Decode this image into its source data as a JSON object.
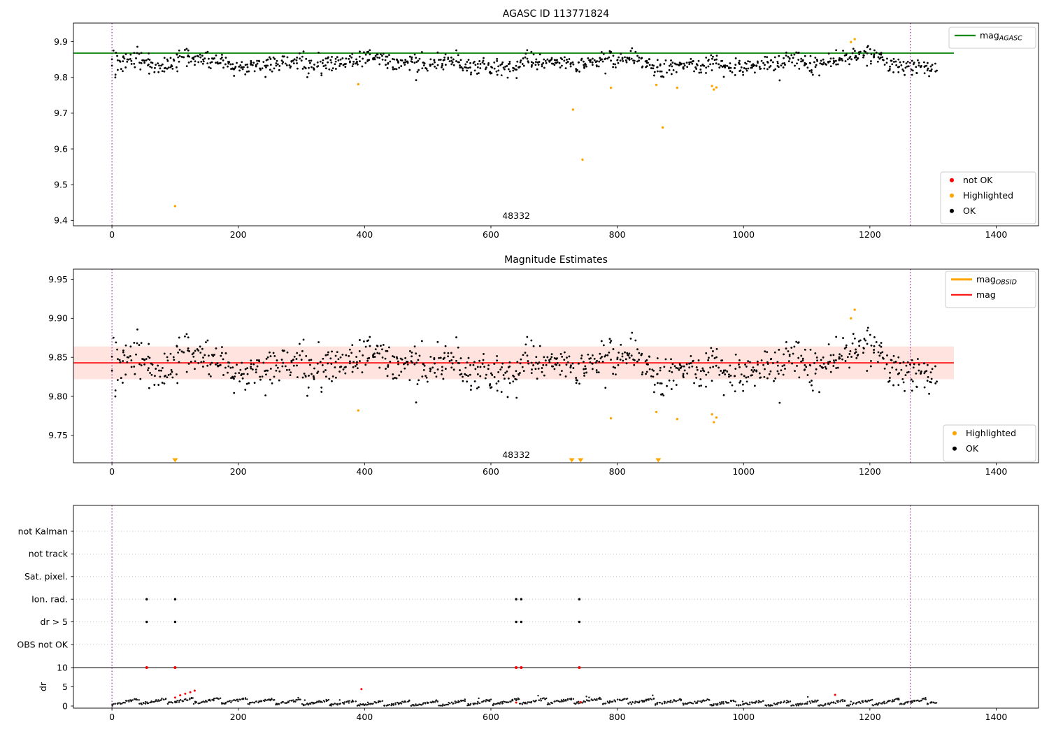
{
  "figure": {
    "bg_color": "#ffffff",
    "x_ticks": [
      0,
      200,
      400,
      600,
      800,
      1000,
      1200,
      1400
    ],
    "xlim": [
      -61,
      1467
    ],
    "vlines": {
      "x": [
        0,
        1264
      ],
      "color": "#800080",
      "style": "dotted"
    }
  },
  "chart_data": [
    {
      "type": "scatter",
      "title": "AGASC ID 113771824",
      "ylim": [
        9.385,
        9.952
      ],
      "y_ticks": [
        9.4,
        9.5,
        9.6,
        9.7,
        9.8,
        9.9
      ],
      "y_tick_decimals": 1,
      "annotation": {
        "text": "48332",
        "x": 640
      },
      "ref_line": {
        "value": 9.868,
        "color": "#008000",
        "label_main": "mag",
        "label_sub": "AGASC",
        "x_end": 1333
      },
      "legend_lines": [
        {
          "label_main": "mag",
          "label_sub": "AGASC",
          "color": "#008000"
        }
      ],
      "legend_markers": [
        {
          "label": "not OK",
          "color": "#ff0000"
        },
        {
          "label": "Highlighted",
          "color": "#ffa500"
        },
        {
          "label": "OK",
          "color": "#000000"
        }
      ],
      "ok_scatter": {
        "n": 1000,
        "x_min": 0,
        "x_max": 1305,
        "y_mean": 9.841,
        "y_spread": 0.012,
        "y_min": 9.778,
        "y_max": 9.903,
        "seed": 20240101,
        "color": "#000000"
      },
      "highlighted_color": "#ffa500",
      "highlighted_points": [
        [
          100,
          9.44
        ],
        [
          390,
          9.781
        ],
        [
          730,
          9.71
        ],
        [
          745,
          9.57
        ],
        [
          790,
          9.771
        ],
        [
          862,
          9.779
        ],
        [
          872,
          9.66
        ],
        [
          895,
          9.771
        ],
        [
          950,
          9.776
        ],
        [
          953,
          9.766
        ],
        [
          957,
          9.772
        ],
        [
          1170,
          9.899
        ],
        [
          1176,
          9.907
        ]
      ],
      "not_ok_points": []
    },
    {
      "type": "scatter",
      "title": "Magnitude Estimates",
      "ylim": [
        9.715,
        9.963
      ],
      "y_ticks": [
        9.75,
        9.8,
        9.85,
        9.9,
        9.95
      ],
      "y_tick_decimals": 2,
      "annotation": {
        "text": "48332",
        "x": 640
      },
      "ref_line": {
        "value": 9.843,
        "color": "#ff0000",
        "label_main": "mag",
        "label_sub": "",
        "x_end": 1333
      },
      "band": {
        "low": 9.822,
        "high": 9.864,
        "color": "#ff6347",
        "opacity": 0.18,
        "x_end": 1333
      },
      "legend_lines": [
        {
          "label_main": "mag",
          "label_sub": "OBSID",
          "color": "#ffa500"
        },
        {
          "label_main": "mag",
          "label_sub": "",
          "color": "#ff0000"
        }
      ],
      "legend_markers": [
        {
          "label": "Highlighted",
          "color": "#ffa500"
        },
        {
          "label": "OK",
          "color": "#000000"
        }
      ],
      "ok_scatter": {
        "n": 1000,
        "x_min": 0,
        "x_max": 1305,
        "y_mean": 9.841,
        "y_spread": 0.012,
        "y_min": 9.788,
        "y_max": 9.908,
        "seed": 20240101,
        "color": "#000000"
      },
      "highlighted_color": "#ffa500",
      "highlighted_points": [
        [
          390,
          9.782
        ],
        [
          790,
          9.772
        ],
        [
          862,
          9.78
        ],
        [
          895,
          9.771
        ],
        [
          950,
          9.777
        ],
        [
          953,
          9.767
        ],
        [
          957,
          9.773
        ],
        [
          1170,
          9.9
        ],
        [
          1176,
          9.911
        ]
      ],
      "clipped_markers": {
        "x": [
          100,
          728,
          742,
          865
        ],
        "color": "#ffa500"
      }
    },
    {
      "type": "flags",
      "title": "",
      "flag_rows": [
        "not Kalman",
        "not track",
        "Sat. pixel.",
        "Ion. rad.",
        "dr > 5",
        "OBS not OK"
      ],
      "flag_points": [
        {
          "row": "Ion. rad.",
          "x": [
            55,
            100,
            640,
            648,
            740
          ],
          "color": "#000000"
        },
        {
          "row": "dr > 5",
          "x": [
            55,
            100,
            640,
            648,
            740
          ],
          "color": "#000000"
        }
      ],
      "dr_axis": {
        "label": "dr",
        "ticks": [
          0,
          5,
          10
        ]
      },
      "dr_threshold": {
        "value": 10,
        "color": "#000000"
      },
      "dr_exceed_points": {
        "x": [
          55,
          100,
          640,
          648,
          740
        ],
        "value": 10,
        "color": "#ff0000"
      },
      "dr_scatter": {
        "n": 900,
        "x_min": 0,
        "x_max": 1305,
        "seed": 777,
        "color": "#1a1a1a"
      },
      "dr_red_points": [
        [
          100,
          2.2
        ],
        [
          108,
          2.8
        ],
        [
          116,
          3.2
        ],
        [
          124,
          3.6
        ],
        [
          131,
          4.0
        ],
        [
          395,
          4.4
        ],
        [
          640,
          0.9
        ],
        [
          742,
          1.0
        ],
        [
          1145,
          2.9
        ]
      ],
      "red_color": "#ff0000"
    }
  ]
}
